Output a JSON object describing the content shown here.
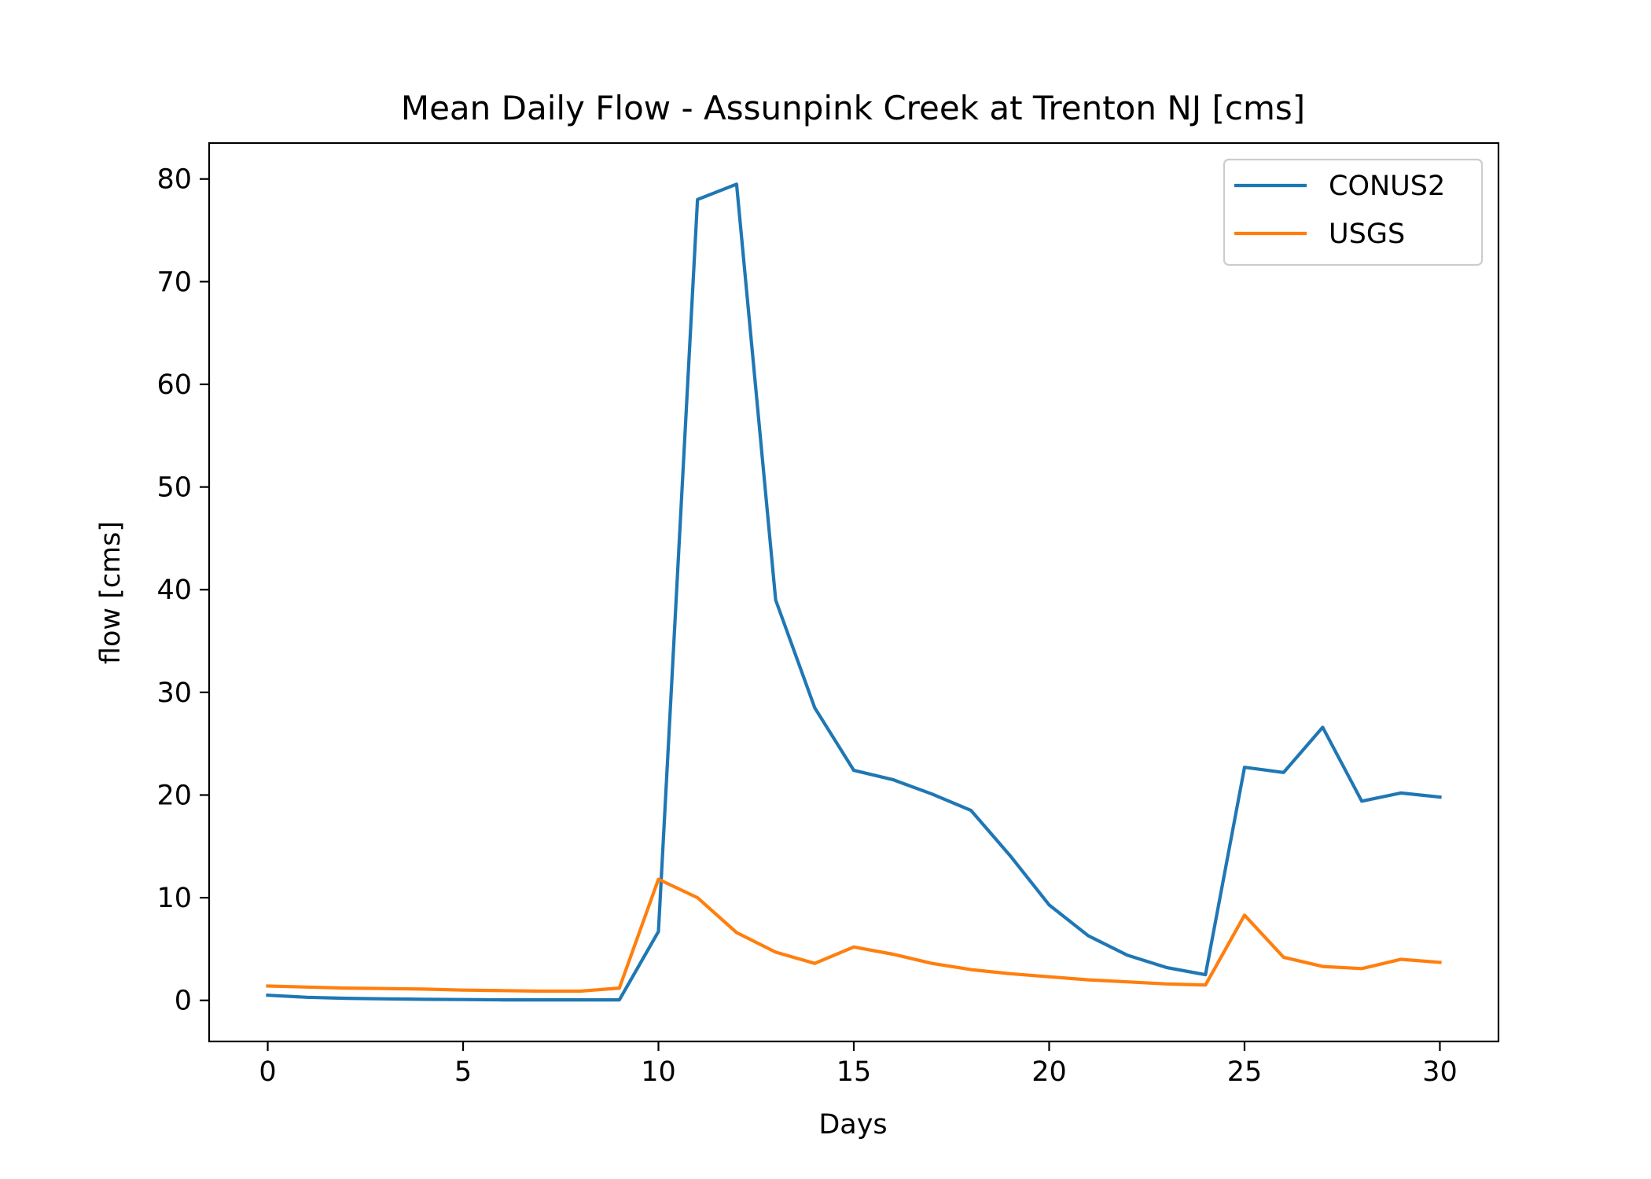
{
  "chart_data": {
    "type": "line",
    "title": "Mean Daily Flow - Assunpink Creek at Trenton NJ [cms]",
    "xlabel": "Days",
    "ylabel": "flow [cms]",
    "xlim": [
      -1.5,
      31.5
    ],
    "ylim": [
      -4,
      83.5
    ],
    "xticks": [
      0,
      5,
      10,
      15,
      20,
      25,
      30
    ],
    "yticks": [
      0,
      10,
      20,
      30,
      40,
      50,
      60,
      70,
      80
    ],
    "grid": false,
    "legend_position": "top-right",
    "x": [
      0,
      1,
      2,
      3,
      4,
      5,
      6,
      7,
      8,
      9,
      10,
      11,
      12,
      13,
      14,
      15,
      16,
      17,
      18,
      19,
      20,
      21,
      22,
      23,
      24,
      25,
      26,
      27,
      28,
      29,
      30
    ],
    "series": [
      {
        "name": "CONUS2",
        "color": "#1f77b4",
        "values": [
          0.5,
          0.3,
          0.2,
          0.15,
          0.1,
          0.08,
          0.05,
          0.05,
          0.05,
          0.05,
          6.7,
          78,
          79.5,
          39,
          28.5,
          22.4,
          21.5,
          20.1,
          18.5,
          14.1,
          9.3,
          6.3,
          4.4,
          3.2,
          2.5,
          22.7,
          22.2,
          26.6,
          19.4,
          20.2,
          19.8
        ]
      },
      {
        "name": "USGS",
        "color": "#ff7f0e",
        "values": [
          1.4,
          1.3,
          1.2,
          1.15,
          1.1,
          1.0,
          0.95,
          0.9,
          0.9,
          1.2,
          11.8,
          10.0,
          6.6,
          4.7,
          3.6,
          5.2,
          4.5,
          3.6,
          3.0,
          2.6,
          2.3,
          2.0,
          1.8,
          1.6,
          1.5,
          8.3,
          4.2,
          3.3,
          3.1,
          4.0,
          3.7
        ]
      }
    ]
  }
}
